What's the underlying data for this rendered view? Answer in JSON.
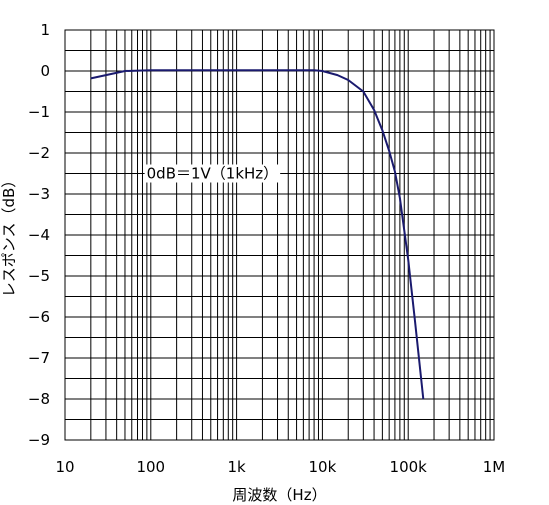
{
  "chart_data": {
    "type": "line",
    "title": "",
    "xlabel": "周波数（Hz）",
    "ylabel": "レスポンス（dB）",
    "xscale": "log",
    "xlim": [
      10,
      1000000
    ],
    "ylim": [
      -9,
      1
    ],
    "grid": true,
    "x_ticks": [
      {
        "value": 10,
        "label": "10"
      },
      {
        "value": 100,
        "label": "100"
      },
      {
        "value": 1000,
        "label": "1k"
      },
      {
        "value": 10000,
        "label": "10k"
      },
      {
        "value": 100000,
        "label": "100k"
      },
      {
        "value": 1000000,
        "label": "1M"
      }
    ],
    "y_ticks": [
      {
        "value": 1,
        "label": "1"
      },
      {
        "value": 0,
        "label": "0"
      },
      {
        "value": -1,
        "label": "−1"
      },
      {
        "value": -2,
        "label": "−2"
      },
      {
        "value": -3,
        "label": "−3"
      },
      {
        "value": -4,
        "label": "−4"
      },
      {
        "value": -5,
        "label": "−5"
      },
      {
        "value": -6,
        "label": "−6"
      },
      {
        "value": -7,
        "label": "−7"
      },
      {
        "value": -8,
        "label": "−8"
      },
      {
        "value": -9,
        "label": "−9"
      }
    ],
    "annotation": {
      "text": "0dB＝1V（1kHz）",
      "x": 200,
      "y": -2.5
    },
    "series": [
      {
        "color": "#1a1a6e",
        "x": [
          20,
          30,
          50,
          100,
          1000,
          5000,
          8000,
          10000,
          15000,
          20000,
          30000,
          40000,
          50000,
          60000,
          70000,
          80000,
          100000,
          120000,
          150000
        ],
        "y": [
          -0.18,
          -0.1,
          0.0,
          0.02,
          0.02,
          0.02,
          0.02,
          0.0,
          -0.1,
          -0.22,
          -0.5,
          -0.95,
          -1.45,
          -1.95,
          -2.45,
          -3.1,
          -4.6,
          -6.1,
          -8.0
        ]
      }
    ]
  }
}
